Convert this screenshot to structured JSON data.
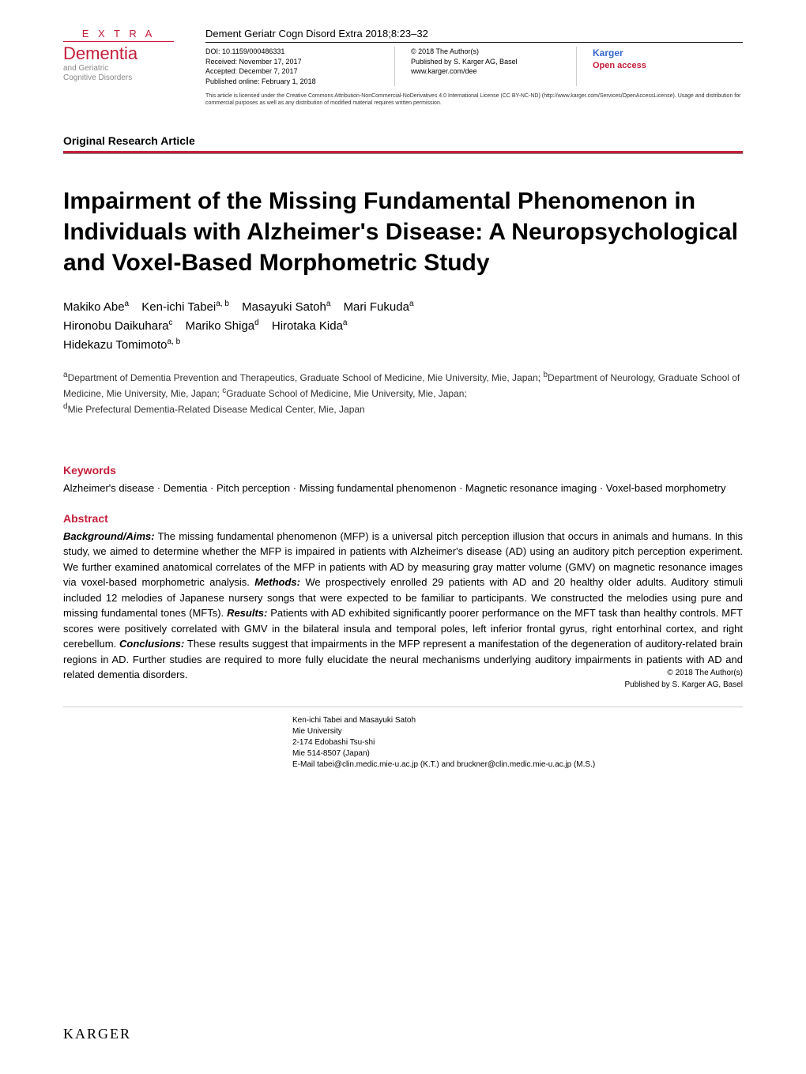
{
  "logo": {
    "extra": "E X T R A",
    "main": "Dementia",
    "sub1": "and Geriatric",
    "sub2": "Cognitive Disorders"
  },
  "journal_citation": "Dement Geriatr Cogn Disord Extra 2018;8:23–32",
  "meta": {
    "doi": "DOI: 10.1159/000486331",
    "received": "Received: November 17, 2017",
    "accepted": "Accepted: December 7, 2017",
    "published": "Published online: February 1, 2018",
    "copyright1": "© 2018 The Author(s)",
    "copyright2": "Published by S. Karger AG, Basel",
    "url": "www.karger.com/dee",
    "karger": "Karger",
    "open_access": "Open access"
  },
  "license_text": "This article is licensed under the Creative Commons Attribution-NonCommercial-NoDerivatives 4.0 International License (CC BY-NC-ND) (http://www.karger.com/Services/OpenAccessLicense). Usage and distribution for commercial purposes as well as any distribution of modified material requires written permission.",
  "section_type": "Original Research Article",
  "title": "Impairment of the Missing Fundamental Phenomenon in Individuals with Alzheimer's Disease: A Neuropsychological and Voxel-Based Morphometric Study",
  "authors": [
    {
      "name": "Makiko Abe",
      "sup": "a"
    },
    {
      "name": "Ken-ichi Tabei",
      "sup": "a, b"
    },
    {
      "name": "Masayuki Satoh",
      "sup": "a"
    },
    {
      "name": "Mari Fukuda",
      "sup": "a"
    },
    {
      "name": "Hironobu Daikuhara",
      "sup": "c"
    },
    {
      "name": "Mariko Shiga",
      "sup": "d"
    },
    {
      "name": "Hirotaka Kida",
      "sup": "a"
    },
    {
      "name": "Hidekazu Tomimoto",
      "sup": "a, b"
    }
  ],
  "affiliations": {
    "a": "Department of Dementia Prevention and Therapeutics, Graduate School of Medicine, Mie University, Mie, Japan;",
    "b": "Department of Neurology, Graduate School of Medicine, Mie University, Mie, Japan;",
    "c": "Graduate School of Medicine, Mie University, Mie, Japan;",
    "d": "Mie Prefectural Dementia-Related Disease Medical Center, Mie, Japan"
  },
  "keywords": {
    "heading": "Keywords",
    "text": "Alzheimer's disease · Dementia · Pitch perception · Missing fundamental phenomenon · Magnetic resonance imaging · Voxel-based morphometry"
  },
  "abstract": {
    "heading": "Abstract",
    "background_label": "Background/Aims:",
    "background_text": " The missing fundamental phenomenon (MFP) is a universal pitch perception illusion that occurs in animals and humans. In this study, we aimed to determine whether the MFP is impaired in patients with Alzheimer's disease (AD) using an auditory pitch perception experiment. We further examined anatomical correlates of the MFP in patients with AD by measuring gray matter volume (GMV) on magnetic resonance images via voxel-based morphometric analysis. ",
    "methods_label": "Methods:",
    "methods_text": " We prospectively enrolled 29 patients with AD and 20 healthy older adults. Auditory stimuli included 12 melodies of Japanese nursery songs that were expected to be familiar to participants. We constructed the melodies using pure and missing fundamental tones (MFTs). ",
    "results_label": "Results:",
    "results_text": " Patients with AD exhibited significantly poorer performance on the MFT task than healthy controls. MFT scores were positively correlated with GMV in the bilateral insula and temporal poles, left inferior frontal gyrus, right entorhinal cortex, and right cerebellum. ",
    "conclusions_label": "Conclusions:",
    "conclusions_text": " These results suggest that impairments in the MFP represent a manifestation of the degeneration of auditory-related brain regions in AD. Further studies are required to more fully elucidate the neural mechanisms underlying auditory impairments in patients with AD and related dementia disorders.",
    "copyright_line1": "© 2018 The Author(s)",
    "copyright_line2": "Published by S. Karger AG, Basel"
  },
  "footer": {
    "contact_name": "Ken-ichi Tabei and Masayuki Satoh",
    "contact_inst": "Mie University",
    "contact_addr": "2-174 Edobashi Tsu-shi",
    "contact_zip": "Mie 514-8507 (Japan)",
    "contact_email": "E-Mail tabei@clin.medic.mie-u.ac.jp (K.T.) and bruckner@clin.medic.mie-u.ac.jp (M.S.)"
  },
  "publisher_footer": "KARGER",
  "colors": {
    "accent_red": "#c41e3a",
    "karger_blue": "#3366cc",
    "text_gray": "#888888"
  }
}
